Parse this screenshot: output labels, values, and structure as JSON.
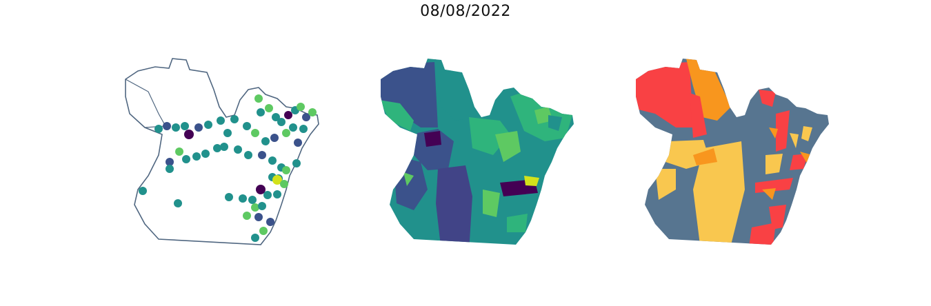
{
  "title": "08/08/2022",
  "colors": {
    "outline": "#4f6680",
    "viridis": [
      "#440154",
      "#3b528b",
      "#21918c",
      "#5ec962",
      "#fde725"
    ],
    "categories": [
      "#f94144",
      "#f8961e",
      "#f9c74f",
      "#577590"
    ]
  },
  "panels": [
    {
      "name": "points-panel",
      "type": "scatter-on-outline"
    },
    {
      "name": "choropleth-viridis-panel",
      "type": "choropleth"
    },
    {
      "name": "choropleth-category-panel",
      "type": "choropleth"
    }
  ]
}
